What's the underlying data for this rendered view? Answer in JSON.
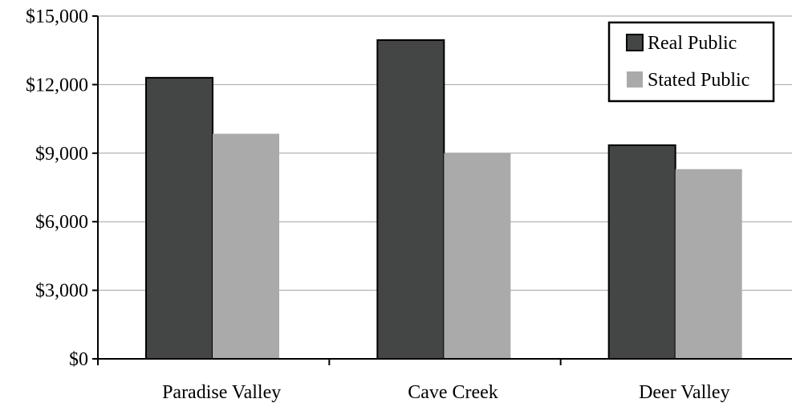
{
  "chart_data": {
    "type": "bar",
    "title": "",
    "xlabel": "",
    "ylabel": "",
    "categories": [
      "Paradise Valley",
      "Cave Creek",
      "Deer Valley"
    ],
    "series": [
      {
        "name": "Real Public",
        "values": [
          12300,
          13950,
          9350
        ],
        "color": "#444645"
      },
      {
        "name": "Stated Public",
        "values": [
          9850,
          9000,
          8300
        ],
        "color": "#aaaaaa"
      }
    ],
    "ylim": [
      0,
      15000
    ],
    "yticks": [
      0,
      3000,
      6000,
      9000,
      12000,
      15000
    ],
    "ytick_labels": [
      "$0",
      "$3,000",
      "$6,000",
      "$9,000",
      "$12,000",
      "$15,000"
    ],
    "grid": true,
    "legend": "top-right"
  }
}
